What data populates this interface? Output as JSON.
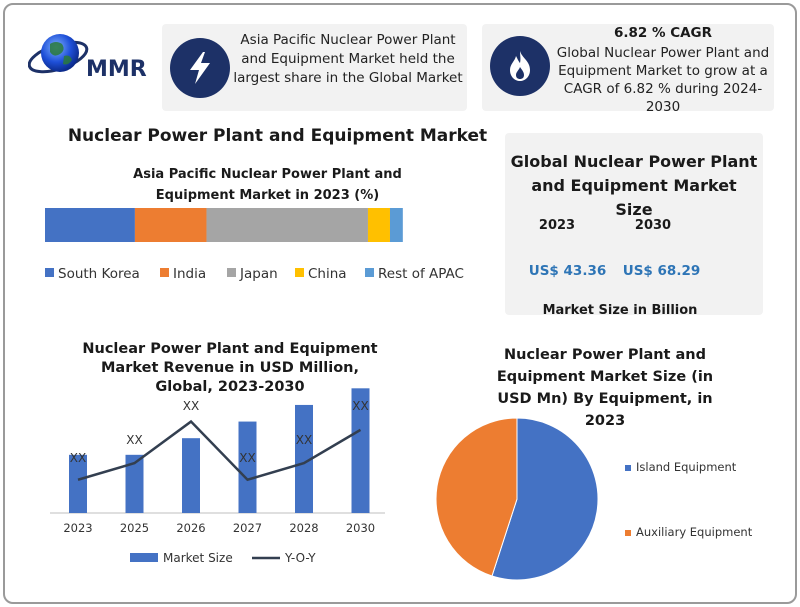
{
  "logo": {
    "text": "MMR"
  },
  "highlights": {
    "share_text": "Asia Pacific Nuclear Power Plant and Equipment Market held the largest share in the Global Market",
    "cagr_title": "6.82 % CAGR",
    "cagr_text": "Global Nuclear Power Plant and Equipment Market to grow at a CAGR of 6.82 % during 2024-2030"
  },
  "main_title": "Nuclear Power Plant and Equipment Market",
  "market_size": {
    "title": "Global Nuclear Power Plant and Equipment Market Size",
    "year1": "2023",
    "year2": "2030",
    "value1": "US$ 43.36",
    "value2": "US$ 68.29",
    "footer": "Market Size in Billion"
  },
  "colors": {
    "navy": "#1d3167",
    "blue": "#4472c4",
    "orange": "#ed7d31",
    "gray": "#a5a5a5",
    "gold": "#ffc000",
    "lightblue": "#5b9bd5",
    "accent_text": "#2e75b6",
    "line": "#333f50"
  },
  "chart_data": [
    {
      "type": "bar",
      "title": "Asia Pacific Nuclear Power Plant and Equipment Market in 2023 (%)",
      "stacked": true,
      "orientation": "horizontal",
      "series": [
        {
          "name": "South Korea",
          "value": 24.5,
          "color": "#4472c4"
        },
        {
          "name": "India",
          "value": 19.5,
          "color": "#ed7d31"
        },
        {
          "name": "Japan",
          "value": 44.0,
          "color": "#a5a5a5"
        },
        {
          "name": "China",
          "value": 6.0,
          "color": "#ffc000"
        },
        {
          "name": "Rest of APAC",
          "value": 3.5,
          "color": "#5b9bd5"
        }
      ],
      "legend_position": "bottom"
    },
    {
      "type": "bar",
      "title": "Nuclear Power Plant and Equipment Market Revenue in USD Million, Global, 2023-2030",
      "categories": [
        "2023",
        "2025",
        "2026",
        "2027",
        "2028",
        "2030"
      ],
      "series": [
        {
          "name": "Market Size",
          "values": [
            35,
            35,
            45,
            55,
            65,
            75
          ]
        },
        {
          "name": "Y-O-Y",
          "values": [
            20,
            30,
            55,
            20,
            30,
            50
          ]
        }
      ],
      "data_labels": [
        "XX",
        "XX",
        "XX",
        "XX",
        "XX",
        "XX"
      ],
      "grid": false,
      "legend_position": "bottom"
    },
    {
      "type": "pie",
      "title": "Nuclear Power Plant and Equipment Market Size (in USD Mn) By Equipment, in 2023",
      "categories": [
        "Island Equipment",
        "Auxiliary Equipment"
      ],
      "values": [
        55,
        45
      ],
      "colors": [
        "#4472c4",
        "#ed7d31"
      ],
      "legend_position": "right"
    }
  ]
}
